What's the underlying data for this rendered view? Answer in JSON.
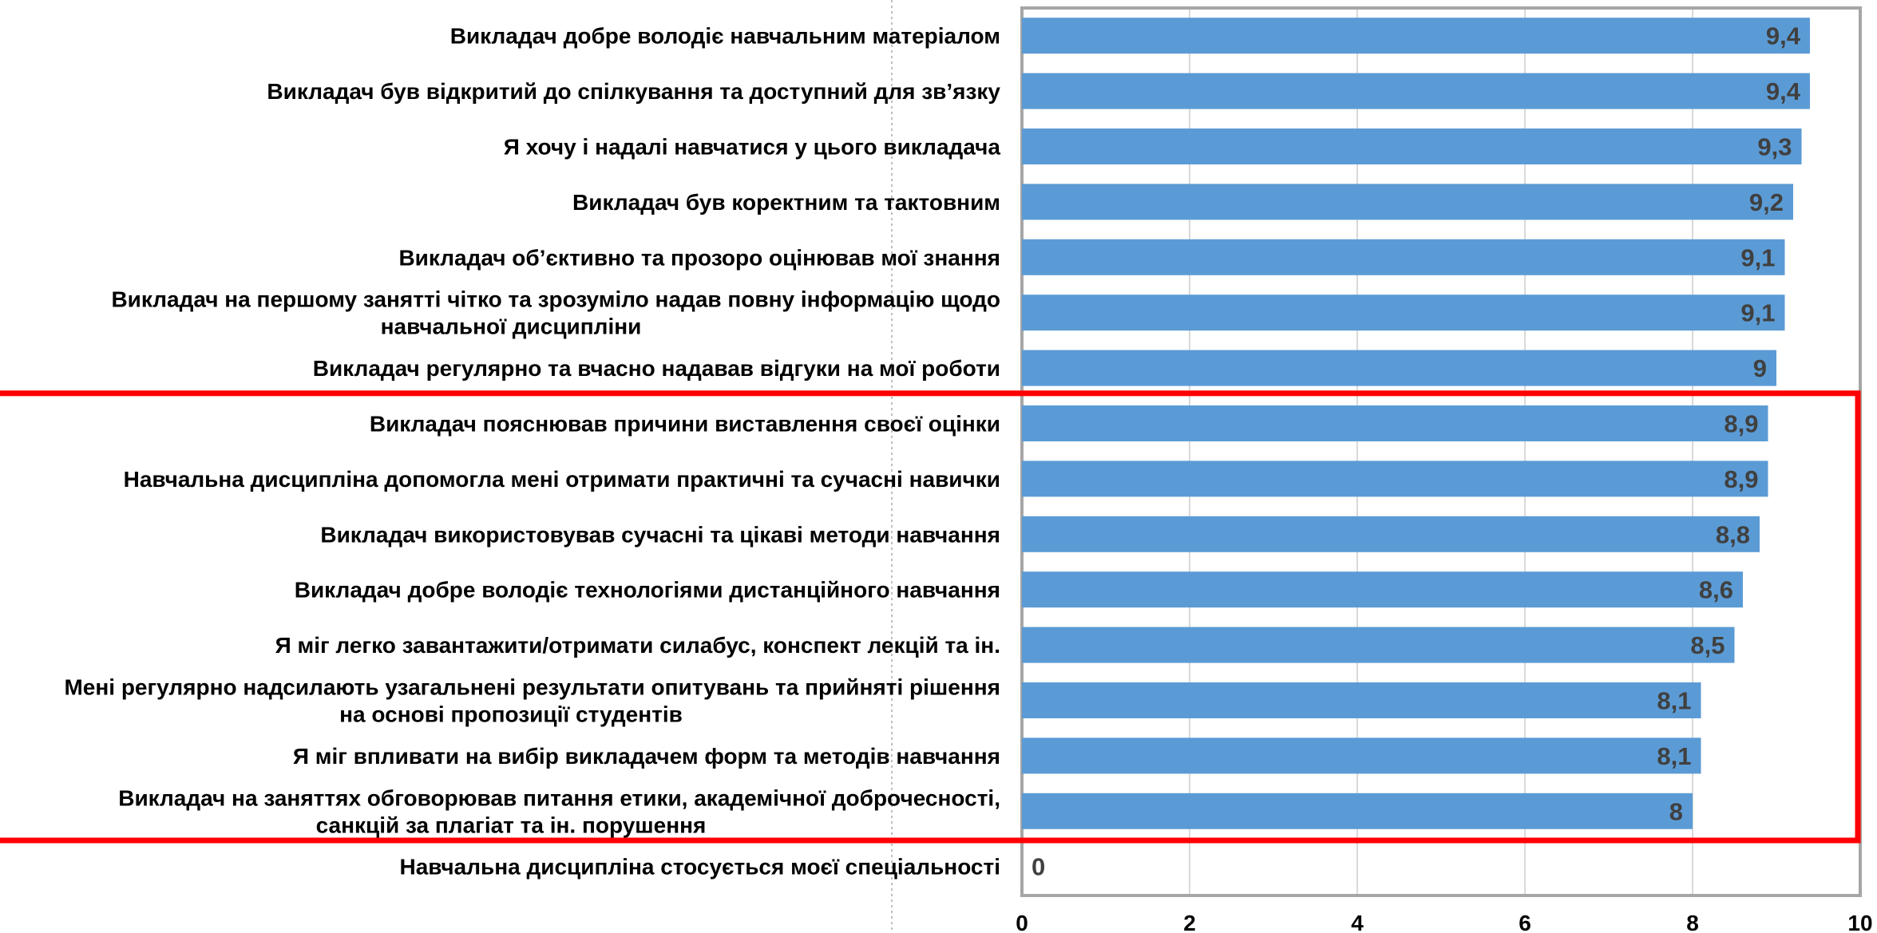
{
  "chart_data": {
    "type": "bar",
    "orientation": "horizontal",
    "categories": [
      [
        "Викладач добре володіє навчальним матеріалом"
      ],
      [
        "Викладач був відкритий до спілкування та доступний для зв’язку"
      ],
      [
        "Я хочу і надалі навчатися у цього викладача"
      ],
      [
        "Викладач був коректним та тактовним"
      ],
      [
        "Викладач об’єктивно та прозоро оцінював мої знання"
      ],
      [
        "Викладач на першому занятті чітко та зрозуміло надав повну інформацію щодо",
        "навчальної дисципліни"
      ],
      [
        "Викладач регулярно та вчасно надавав відгуки на мої роботи"
      ],
      [
        "Викладач пояснював причини виставлення своєї оцінки"
      ],
      [
        "Навчальна дисципліна допомогла мені отримати практичні та сучасні навички"
      ],
      [
        "Викладач використовував сучасні та цікаві методи навчання"
      ],
      [
        "Викладач добре володіє технологіями дистанційного навчання"
      ],
      [
        "Я міг легко завантажити/отримати силабус, конспект лекцій та ін."
      ],
      [
        "Мені регулярно надсилають узагальнені результати опитувань та прийняті рішення",
        "на основі пропозиції студентів"
      ],
      [
        "Я міг впливати на вибір викладачем форм та методів навчання"
      ],
      [
        "Викладач на заняттях обговорював питання етики, академічної доброчесності,",
        "санкцій за плагіат та ін. порушення"
      ],
      [
        "Навчальна дисципліна стосується моєї спеціальності"
      ]
    ],
    "values": [
      9.4,
      9.4,
      9.3,
      9.2,
      9.1,
      9.1,
      9.0,
      8.9,
      8.9,
      8.8,
      8.6,
      8.5,
      8.1,
      8.1,
      8.0,
      0
    ],
    "value_labels": [
      "9,4",
      "9,4",
      "9,3",
      "9,2",
      "9,1",
      "9,1",
      "9",
      "8,9",
      "8,9",
      "8,8",
      "8,6",
      "8,5",
      "8,1",
      "8,1",
      "8",
      "0"
    ],
    "xlim": [
      0,
      10
    ],
    "xticks": [
      0,
      2,
      4,
      6,
      8,
      10
    ],
    "grid": true,
    "bar_color": "#5B9BD5",
    "gridline_color": "#D9D9D9",
    "frame_color": "#A6A6A6",
    "highlight": {
      "color": "#FF0000",
      "from_category": 7,
      "to_category": 14
    }
  }
}
